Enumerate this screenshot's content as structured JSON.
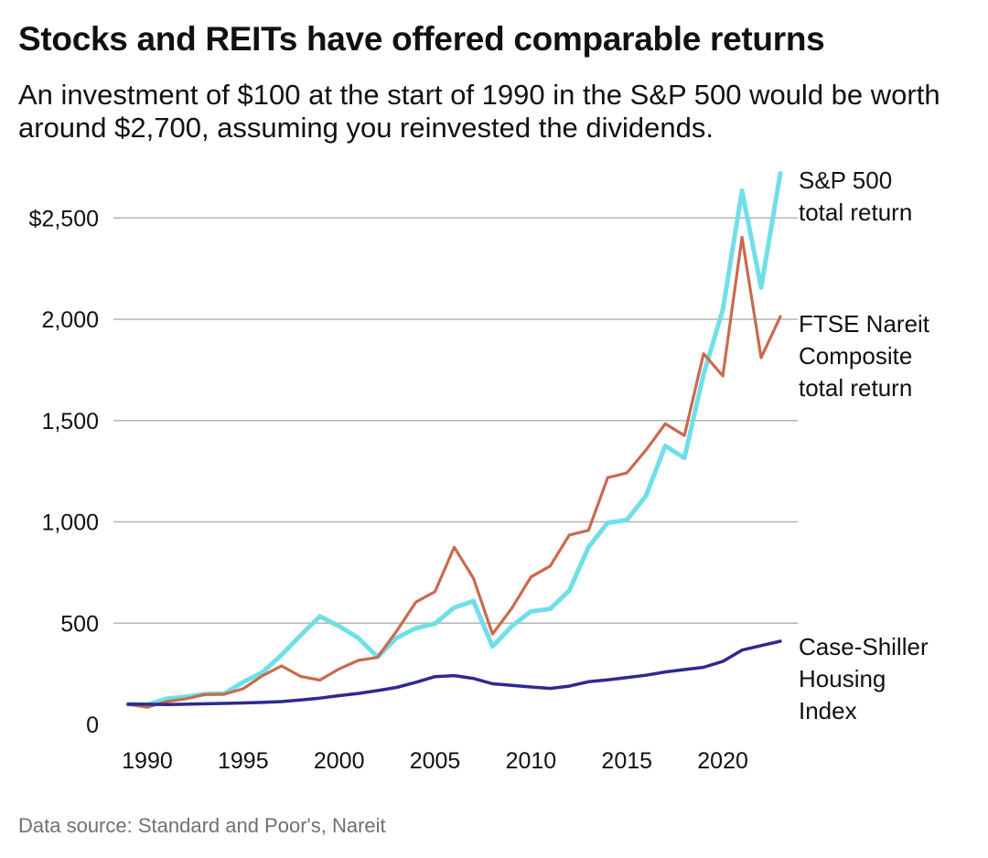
{
  "chart_data": {
    "type": "line",
    "title": "Stocks and REITs have offered comparable returns",
    "subtitle": "An investment of $100 at the start of 1990 in the S&P 500 would be worth around $2,700, assuming you reinvested the dividends.",
    "source": "Data source: Standard and Poor's, Nareit",
    "xlabel": "",
    "ylabel": "",
    "xlim": [
      1989,
      2023
    ],
    "ylim": [
      0,
      2800
    ],
    "x_ticks": [
      1990,
      1995,
      2000,
      2005,
      2010,
      2015,
      2020
    ],
    "x_tick_labels": [
      "1990",
      "1995",
      "2000",
      "2005",
      "2010",
      "2015",
      "2020"
    ],
    "y_ticks": [
      0,
      500,
      1000,
      1500,
      2000,
      2500
    ],
    "y_tick_labels": [
      "0",
      "500",
      "1,000",
      "1,500",
      "2,000",
      "$2,500"
    ],
    "grid": true,
    "legend": "direct labels at line ends (right)",
    "x": [
      1989,
      1990,
      1991,
      1992,
      1993,
      1994,
      1995,
      1996,
      1997,
      1998,
      1999,
      2000,
      2001,
      2002,
      2003,
      2004,
      2005,
      2006,
      2007,
      2008,
      2009,
      2010,
      2011,
      2012,
      2013,
      2014,
      2015,
      2016,
      2017,
      2018,
      2019,
      2020,
      2021,
      2022,
      2023
    ],
    "series": [
      {
        "name": "S&P 500 total return",
        "label_lines": [
          "S&P 500",
          "total return"
        ],
        "color": "#6fdfe8",
        "values": [
          100,
          97,
          127,
          137,
          150,
          152,
          209,
          257,
          343,
          440,
          533,
          485,
          427,
          333,
          428,
          475,
          498,
          577,
          609,
          384,
          485,
          558,
          570,
          661,
          875,
          995,
          1009,
          1129,
          1375,
          1315,
          1728,
          2046,
          2634,
          2156,
          2720
        ]
      },
      {
        "name": "FTSE Nareit Composite total return",
        "label_lines": [
          "FTSE Nareit",
          "Composite",
          "total return"
        ],
        "color": "#c96a4e",
        "values": [
          100,
          85,
          113,
          126,
          148,
          149,
          176,
          240,
          289,
          237,
          219,
          274,
          316,
          331,
          461,
          604,
          655,
          875,
          722,
          446,
          573,
          728,
          782,
          935,
          958,
          1218,
          1241,
          1355,
          1484,
          1426,
          1830,
          1720,
          2405,
          1810,
          2013
        ]
      },
      {
        "name": "Case-Shiller Housing Index",
        "label_lines": [
          "Case-Shiller",
          "Housing",
          "Index"
        ],
        "color": "#2e2a8f",
        "values": [
          100,
          100,
          98,
          100,
          102,
          104,
          106,
          109,
          113,
          121,
          130,
          142,
          153,
          167,
          183,
          208,
          236,
          241,
          227,
          201,
          193,
          185,
          178,
          189,
          211,
          220,
          231,
          243,
          259,
          271,
          282,
          311,
          367,
          389,
          411
        ]
      }
    ]
  }
}
